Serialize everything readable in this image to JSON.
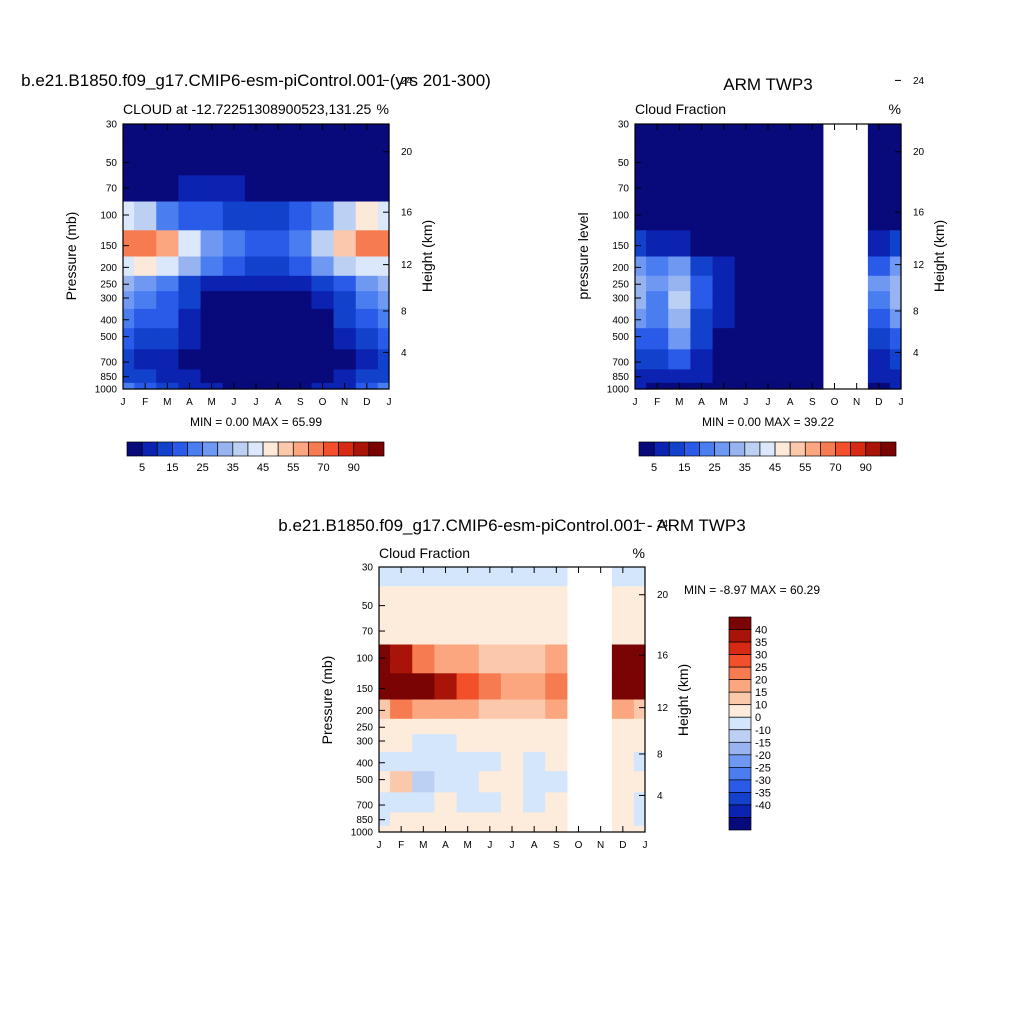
{
  "palette": {
    "seq": [
      "#08097a",
      "#0b23b0",
      "#1241cc",
      "#2a5be8",
      "#4a7ef0",
      "#6f98f2",
      "#98b4f0",
      "#bcd0f4",
      "#dbe8fb",
      "#fde9d9",
      "#fcc8ac",
      "#fba67f",
      "#f77b50",
      "#f2502a",
      "#d62a12",
      "#a91408",
      "#7a0303"
    ],
    "diff": [
      "#08097a",
      "#0b23b0",
      "#1241cc",
      "#2a5be8",
      "#4a7ef0",
      "#6f98f2",
      "#98b4f0",
      "#bcd0f4",
      "#d4e6fb",
      "#fdebdc",
      "#fcc8ac",
      "#fba67f",
      "#f77b50",
      "#f2502a",
      "#d62a12",
      "#a91408",
      "#7a0303"
    ]
  },
  "months": [
    "J",
    "F",
    "M",
    "A",
    "M",
    "J",
    "J",
    "A",
    "S",
    "O",
    "N",
    "D",
    "J"
  ],
  "pressure_ticks": [
    "30",
    "50",
    "70",
    "100",
    "150",
    "200",
    "250",
    "300",
    "400",
    "500",
    "700",
    "850",
    "1000"
  ],
  "height_ticks": [
    "24",
    "20",
    "16",
    "12",
    "8",
    "4"
  ],
  "panels": {
    "model": {
      "title": "b.e21.B1850.f09_g17.CMIP6-esm-piControl.001 (yrs 201-300)",
      "left_label": "CLOUD at -12.72251308900523,131.25",
      "right_label": "%",
      "ylabel": "Pressure (mb)",
      "ylabel_right": "Height (km)",
      "stats": "MIN =   0.00 MAX =  65.99"
    },
    "obs": {
      "title": "ARM TWP3",
      "left_label": "Cloud Fraction",
      "right_label": "%",
      "ylabel": "pressure level",
      "ylabel_right": "Height (km)",
      "stats": "MIN =   0.00 MAX =  39.22"
    },
    "diff": {
      "title": "b.e21.B1850.f09_g17.CMIP6-esm-piControl.001 - ARM TWP3",
      "left_label": "Cloud Fraction",
      "right_label": "%",
      "ylabel": "Pressure (mb)",
      "ylabel_right": "Height (km)",
      "stats": "MIN =  -8.97 MAX =  60.29"
    }
  },
  "colorbar_seq_labels": [
    "5",
    "15",
    "25",
    "35",
    "45",
    "55",
    "70",
    "90"
  ],
  "colorbar_diff_labels": [
    "40",
    "35",
    "30",
    "25",
    "20",
    "15",
    "10",
    "0",
    "-10",
    "-15",
    "-20",
    "-25",
    "-30",
    "-35",
    "-40"
  ],
  "chart_data": [
    {
      "type": "heatmap",
      "name": "model",
      "title": "b.e21.B1850.f09_g17.CMIP6-esm-piControl.001 (yrs 201-300)",
      "x": [
        "J",
        "F",
        "M",
        "A",
        "M",
        "J",
        "J",
        "A",
        "S",
        "O",
        "N",
        "D",
        "J"
      ],
      "y": [
        "30",
        "50",
        "70",
        "100",
        "150",
        "200",
        "250",
        "300",
        "400",
        "500",
        "700",
        "850",
        "1000"
      ],
      "xlabel": "",
      "ylabel": "Pressure (mb)",
      "levels": [
        0,
        5,
        10,
        15,
        20,
        25,
        30,
        35,
        40,
        45,
        50,
        55,
        60,
        70,
        80,
        90,
        100
      ],
      "missing_cols": [],
      "values": [
        [
          0,
          0,
          0,
          0,
          0,
          0,
          0,
          0,
          0,
          0,
          0,
          0,
          0
        ],
        [
          0,
          0,
          0,
          0,
          0,
          0,
          0,
          0,
          0,
          0,
          0,
          0,
          0
        ],
        [
          3,
          2,
          2,
          5,
          5,
          5,
          4,
          4,
          4,
          4,
          4,
          3,
          3
        ],
        [
          40,
          35,
          20,
          18,
          15,
          13,
          12,
          13,
          15,
          22,
          35,
          45,
          40
        ],
        [
          62,
          66,
          55,
          40,
          28,
          20,
          18,
          18,
          20,
          35,
          50,
          60,
          62
        ],
        [
          40,
          45,
          40,
          30,
          20,
          15,
          13,
          13,
          15,
          25,
          35,
          40,
          40
        ],
        [
          30,
          28,
          22,
          14,
          8,
          5,
          5,
          5,
          6,
          10,
          18,
          28,
          30
        ],
        [
          25,
          22,
          18,
          10,
          4,
          0,
          0,
          0,
          2,
          6,
          14,
          22,
          25
        ],
        [
          20,
          18,
          15,
          8,
          2,
          0,
          0,
          0,
          0,
          4,
          10,
          18,
          20
        ],
        [
          15,
          14,
          10,
          5,
          1,
          0,
          0,
          0,
          0,
          2,
          6,
          12,
          15
        ],
        [
          10,
          9,
          7,
          4,
          1,
          0,
          0,
          0,
          0,
          1,
          4,
          8,
          10
        ],
        [
          12,
          10,
          8,
          5,
          2,
          1,
          1,
          1,
          1,
          2,
          5,
          10,
          12
        ],
        [
          20,
          18,
          12,
          8,
          5,
          3,
          3,
          3,
          3,
          5,
          8,
          15,
          20
        ]
      ]
    },
    {
      "type": "heatmap",
      "name": "obs",
      "title": "ARM TWP3",
      "x": [
        "J",
        "F",
        "M",
        "A",
        "M",
        "J",
        "J",
        "A",
        "S",
        "O",
        "N",
        "D",
        "J"
      ],
      "y": [
        "30",
        "50",
        "70",
        "100",
        "150",
        "200",
        "250",
        "300",
        "400",
        "500",
        "700",
        "850",
        "1000"
      ],
      "xlabel": "",
      "ylabel": "pressure level",
      "levels": [
        0,
        5,
        10,
        15,
        20,
        25,
        30,
        35,
        40,
        45,
        50,
        55,
        60,
        70,
        80,
        90,
        100
      ],
      "missing_cols": [
        9,
        10
      ],
      "values": [
        [
          0,
          0,
          0,
          0,
          0,
          0,
          0,
          0,
          0,
          0,
          0,
          0,
          0
        ],
        [
          0,
          0,
          0,
          0,
          0,
          0,
          0,
          0,
          0,
          0,
          0,
          0,
          0
        ],
        [
          0,
          0,
          0,
          0,
          0,
          0,
          0,
          0,
          0,
          0,
          0,
          0,
          0
        ],
        [
          0,
          0,
          0,
          0,
          0,
          0,
          0,
          0,
          0,
          0,
          0,
          0,
          0
        ],
        [
          10,
          8,
          6,
          3,
          1,
          0,
          0,
          0,
          0,
          0,
          0,
          6,
          10
        ],
        [
          28,
          22,
          25,
          14,
          5,
          1,
          0,
          0,
          0,
          0,
          0,
          18,
          28
        ],
        [
          33,
          26,
          34,
          18,
          8,
          2,
          0,
          0,
          0,
          0,
          0,
          25,
          33
        ],
        [
          30,
          24,
          39,
          16,
          6,
          1,
          0,
          0,
          0,
          0,
          0,
          24,
          30
        ],
        [
          25,
          20,
          32,
          14,
          5,
          1,
          0,
          0,
          0,
          0,
          0,
          18,
          25
        ],
        [
          18,
          16,
          26,
          10,
          3,
          0,
          0,
          0,
          0,
          0,
          0,
          12,
          18
        ],
        [
          12,
          10,
          16,
          8,
          3,
          1,
          0,
          0,
          0,
          0,
          0,
          8,
          12
        ],
        [
          8,
          6,
          8,
          5,
          2,
          1,
          1,
          0,
          0,
          0,
          0,
          6,
          8
        ],
        [
          5,
          4,
          4,
          3,
          2,
          1,
          1,
          0,
          0,
          0,
          0,
          3,
          5
        ]
      ]
    },
    {
      "type": "heatmap",
      "name": "diff",
      "title": "b.e21.B1850.f09_g17.CMIP6-esm-piControl.001 - ARM TWP3",
      "x": [
        "J",
        "F",
        "M",
        "A",
        "M",
        "J",
        "J",
        "A",
        "S",
        "O",
        "N",
        "D",
        "J"
      ],
      "y": [
        "30",
        "50",
        "70",
        "100",
        "150",
        "200",
        "250",
        "300",
        "400",
        "500",
        "700",
        "850",
        "1000"
      ],
      "xlabel": "",
      "ylabel": "Pressure (mb)",
      "levels": [
        -1000,
        -40,
        -35,
        -30,
        -25,
        -20,
        -15,
        -10,
        -5,
        0,
        10,
        15,
        20,
        25,
        30,
        35,
        40,
        1000
      ],
      "missing_cols": [
        9,
        10
      ],
      "values": [
        [
          -1,
          -1,
          -1,
          -1,
          -1,
          -1,
          -1,
          -1,
          -1,
          -1,
          -1,
          -1,
          -1
        ],
        [
          3,
          3,
          3,
          3,
          3,
          3,
          3,
          3,
          3,
          3,
          3,
          3,
          3
        ],
        [
          3,
          3,
          5,
          5,
          5,
          5,
          4,
          4,
          4,
          4,
          4,
          3,
          3
        ],
        [
          40,
          35,
          20,
          18,
          15,
          13,
          12,
          13,
          15,
          15,
          15,
          40,
          40
        ],
        [
          50,
          58,
          45,
          35,
          25,
          20,
          18,
          18,
          20,
          20,
          20,
          50,
          50
        ],
        [
          12,
          20,
          15,
          15,
          15,
          14,
          13,
          13,
          15,
          15,
          15,
          16,
          12
        ],
        [
          3,
          4,
          1,
          2,
          2,
          3,
          5,
          5,
          6,
          6,
          6,
          4,
          3
        ],
        [
          2,
          1,
          -2,
          -2,
          2,
          1,
          1,
          1,
          1,
          1,
          1,
          2,
          2
        ],
        [
          -2,
          -3,
          -3,
          -4,
          -2,
          -1,
          1,
          -1,
          1,
          1,
          1,
          2,
          -2
        ],
        [
          1,
          10,
          -6,
          -3,
          -2,
          1,
          1,
          -2,
          -1,
          -1,
          -1,
          1,
          1
        ],
        [
          -1,
          -1,
          -2,
          1,
          -2,
          -1,
          1,
          -1,
          1,
          1,
          1,
          1,
          -1
        ],
        [
          -1,
          3,
          1,
          1,
          1,
          1,
          1,
          1,
          1,
          1,
          1,
          1,
          -1
        ],
        [
          5,
          4,
          2,
          1,
          1,
          1,
          1,
          1,
          1,
          1,
          1,
          1,
          5
        ]
      ]
    }
  ]
}
